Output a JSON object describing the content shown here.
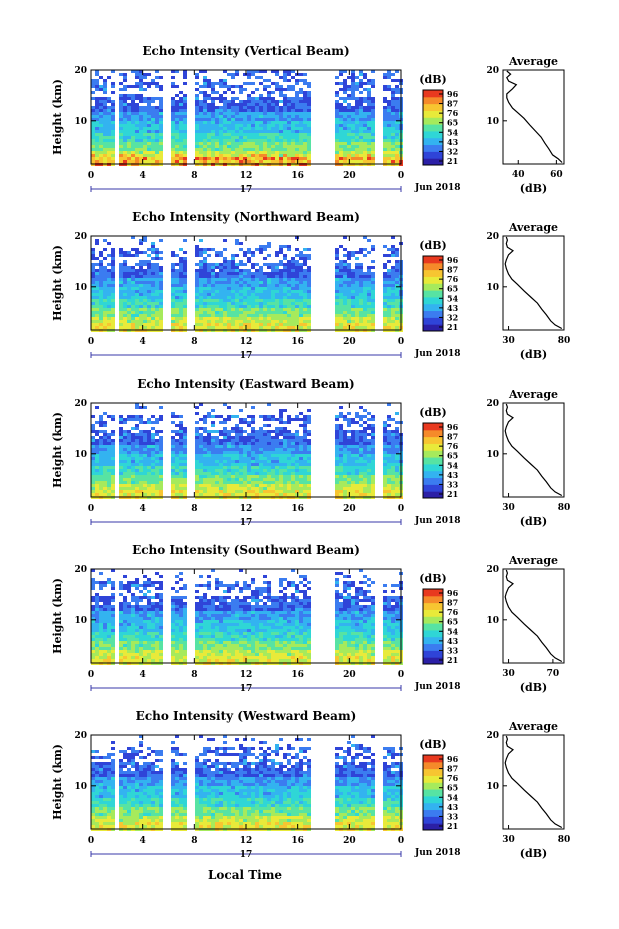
{
  "figure": {
    "common_xlabel": "Local Time",
    "colorbar_unit": "(dB)",
    "date_label": "Jun 2018",
    "day_label": "17",
    "ylabel": "Height (km)",
    "avg_title": "Average",
    "avg_xlabel": "(dB)"
  },
  "colors": {
    "scale": [
      "#2b1fa6",
      "#2f44d8",
      "#3b7cf0",
      "#33b3f0",
      "#2fd6d6",
      "#57e3a3",
      "#a6ea5c",
      "#e8ea3a",
      "#f7c531",
      "#f58a2a",
      "#e8391f"
    ],
    "line": "#000000"
  },
  "chart_data": [
    {
      "type": "heatmap",
      "title": "Echo Intensity (Vertical Beam)",
      "x_ticks": [
        "0",
        "4",
        "8",
        "12",
        "16",
        "20",
        "0"
      ],
      "x_tick_values": [
        0,
        4,
        8,
        12,
        16,
        20,
        24
      ],
      "xlim": [
        0,
        24
      ],
      "y_ticks": [
        "20",
        "10"
      ],
      "y_tick_values": [
        20,
        10
      ],
      "ylim": [
        1.5,
        20
      ],
      "colorbar_ticks": [
        "96",
        "87",
        "76",
        "65",
        "54",
        "43",
        "32",
        "21"
      ],
      "gaps_hours": [
        [
          1.7,
          2.0
        ],
        [
          5.5,
          5.9
        ],
        [
          7.4,
          7.8
        ],
        [
          17.0,
          18.7
        ],
        [
          21.8,
          22.5
        ]
      ],
      "avg_x_ticks": [
        "40",
        "60"
      ],
      "avg_x_tick_values": [
        40,
        60
      ],
      "avg_xlim": [
        32,
        64
      ],
      "avg_y_ticks": [
        "20",
        "10"
      ],
      "avg_y_tick_values": [
        20,
        10
      ],
      "avg_profile": [
        [
          63,
          1.8
        ],
        [
          61,
          2.5
        ],
        [
          58,
          3.3
        ],
        [
          56,
          4.5
        ],
        [
          54,
          5.6
        ],
        [
          52,
          6.8
        ],
        [
          49,
          8.0
        ],
        [
          46,
          9.2
        ],
        [
          43,
          10.5
        ],
        [
          40,
          11.5
        ],
        [
          37,
          12.5
        ],
        [
          35,
          13.6
        ],
        [
          34,
          14.5
        ],
        [
          34,
          15.3
        ],
        [
          37,
          16.3
        ],
        [
          39,
          17.1
        ],
        [
          35,
          17.8
        ],
        [
          34,
          18.5
        ],
        [
          36,
          19.2
        ],
        [
          34,
          19.8
        ]
      ]
    },
    {
      "type": "heatmap",
      "title": "Echo Intensity (Northward Beam)",
      "x_ticks": [
        "0",
        "4",
        "8",
        "12",
        "16",
        "20",
        "0"
      ],
      "x_tick_values": [
        0,
        4,
        8,
        12,
        16,
        20,
        24
      ],
      "xlim": [
        0,
        24
      ],
      "y_ticks": [
        "20",
        "10"
      ],
      "y_tick_values": [
        20,
        10
      ],
      "ylim": [
        1.5,
        20
      ],
      "colorbar_ticks": [
        "96",
        "87",
        "76",
        "65",
        "54",
        "43",
        "32",
        "21"
      ],
      "gaps_hours": [
        [
          1.7,
          2.0
        ],
        [
          5.5,
          5.9
        ],
        [
          7.4,
          7.8
        ],
        [
          17.0,
          18.7
        ],
        [
          21.8,
          22.5
        ]
      ],
      "avg_x_ticks": [
        "30",
        "80"
      ],
      "avg_x_tick_values": [
        30,
        80
      ],
      "avg_xlim": [
        25,
        80
      ],
      "avg_y_ticks": [
        "20",
        "10"
      ],
      "avg_y_tick_values": [
        20,
        10
      ],
      "avg_profile": [
        [
          78,
          1.8
        ],
        [
          72,
          2.5
        ],
        [
          68,
          3.3
        ],
        [
          64,
          4.5
        ],
        [
          60,
          5.6
        ],
        [
          56,
          6.8
        ],
        [
          50,
          8.0
        ],
        [
          44,
          9.2
        ],
        [
          38,
          10.5
        ],
        [
          33,
          11.5
        ],
        [
          30,
          12.5
        ],
        [
          28,
          13.6
        ],
        [
          27,
          14.5
        ],
        [
          28,
          15.3
        ],
        [
          30,
          16.3
        ],
        [
          34,
          17.1
        ],
        [
          29,
          17.8
        ],
        [
          28,
          18.5
        ],
        [
          29,
          19.2
        ],
        [
          28,
          19.8
        ]
      ]
    },
    {
      "type": "heatmap",
      "title": "Echo Intensity (Eastward Beam)",
      "x_ticks": [
        "0",
        "4",
        "8",
        "12",
        "16",
        "20",
        "0"
      ],
      "x_tick_values": [
        0,
        4,
        8,
        12,
        16,
        20,
        24
      ],
      "xlim": [
        0,
        24
      ],
      "y_ticks": [
        "20",
        "10"
      ],
      "y_tick_values": [
        20,
        10
      ],
      "ylim": [
        1.5,
        20
      ],
      "colorbar_ticks": [
        "96",
        "87",
        "76",
        "65",
        "54",
        "43",
        "33",
        "21"
      ],
      "gaps_hours": [
        [
          1.7,
          2.0
        ],
        [
          5.5,
          5.9
        ],
        [
          7.4,
          7.8
        ],
        [
          17.0,
          18.7
        ],
        [
          21.8,
          22.5
        ]
      ],
      "avg_x_ticks": [
        "30",
        "80"
      ],
      "avg_x_tick_values": [
        30,
        80
      ],
      "avg_xlim": [
        25,
        80
      ],
      "avg_y_ticks": [
        "20",
        "10"
      ],
      "avg_y_tick_values": [
        20,
        10
      ],
      "avg_profile": [
        [
          78,
          1.8
        ],
        [
          72,
          2.5
        ],
        [
          68,
          3.3
        ],
        [
          64,
          4.5
        ],
        [
          60,
          5.6
        ],
        [
          56,
          6.8
        ],
        [
          50,
          8.0
        ],
        [
          44,
          9.2
        ],
        [
          38,
          10.5
        ],
        [
          33,
          11.5
        ],
        [
          30,
          12.5
        ],
        [
          28,
          13.6
        ],
        [
          27,
          14.5
        ],
        [
          28,
          15.3
        ],
        [
          30,
          16.3
        ],
        [
          34,
          17.1
        ],
        [
          29,
          17.8
        ],
        [
          28,
          18.5
        ],
        [
          29,
          19.2
        ],
        [
          28,
          19.8
        ]
      ]
    },
    {
      "type": "heatmap",
      "title": "Echo Intensity (Southward Beam)",
      "x_ticks": [
        "0",
        "4",
        "8",
        "12",
        "16",
        "20",
        "0"
      ],
      "x_tick_values": [
        0,
        4,
        8,
        12,
        16,
        20,
        24
      ],
      "xlim": [
        0,
        24
      ],
      "y_ticks": [
        "20",
        "10"
      ],
      "y_tick_values": [
        20,
        10
      ],
      "ylim": [
        1.5,
        20
      ],
      "colorbar_ticks": [
        "96",
        "87",
        "76",
        "65",
        "54",
        "43",
        "33",
        "21"
      ],
      "gaps_hours": [
        [
          1.7,
          2.0
        ],
        [
          5.5,
          5.9
        ],
        [
          7.4,
          7.8
        ],
        [
          17.0,
          18.7
        ],
        [
          21.8,
          22.5
        ]
      ],
      "avg_x_ticks": [
        "30",
        "70"
      ],
      "avg_x_tick_values": [
        30,
        70
      ],
      "avg_xlim": [
        25,
        80
      ],
      "avg_y_ticks": [
        "20",
        "10"
      ],
      "avg_y_tick_values": [
        20,
        10
      ],
      "avg_profile": [
        [
          78,
          1.8
        ],
        [
          72,
          2.5
        ],
        [
          68,
          3.3
        ],
        [
          64,
          4.5
        ],
        [
          60,
          5.6
        ],
        [
          56,
          6.8
        ],
        [
          50,
          8.0
        ],
        [
          44,
          9.2
        ],
        [
          38,
          10.5
        ],
        [
          33,
          11.5
        ],
        [
          30,
          12.5
        ],
        [
          28,
          13.6
        ],
        [
          27,
          14.5
        ],
        [
          28,
          15.3
        ],
        [
          30,
          16.3
        ],
        [
          34,
          17.1
        ],
        [
          29,
          17.8
        ],
        [
          28,
          18.5
        ],
        [
          29,
          19.2
        ],
        [
          28,
          19.8
        ]
      ]
    },
    {
      "type": "heatmap",
      "title": "Echo Intensity (Westward Beam)",
      "x_ticks": [
        "0",
        "4",
        "8",
        "12",
        "16",
        "20",
        "0"
      ],
      "x_tick_values": [
        0,
        4,
        8,
        12,
        16,
        20,
        24
      ],
      "xlim": [
        0,
        24
      ],
      "y_ticks": [
        "20",
        "10"
      ],
      "y_tick_values": [
        20,
        10
      ],
      "ylim": [
        1.5,
        20
      ],
      "colorbar_ticks": [
        "96",
        "87",
        "76",
        "65",
        "54",
        "43",
        "33",
        "21"
      ],
      "gaps_hours": [
        [
          1.7,
          2.0
        ],
        [
          5.5,
          5.9
        ],
        [
          7.4,
          7.8
        ],
        [
          17.0,
          18.7
        ],
        [
          21.8,
          22.5
        ]
      ],
      "avg_x_ticks": [
        "30",
        "80"
      ],
      "avg_x_tick_values": [
        30,
        80
      ],
      "avg_xlim": [
        25,
        80
      ],
      "avg_y_ticks": [
        "20",
        "10"
      ],
      "avg_y_tick_values": [
        20,
        10
      ],
      "avg_profile": [
        [
          78,
          1.8
        ],
        [
          72,
          2.5
        ],
        [
          68,
          3.3
        ],
        [
          64,
          4.5
        ],
        [
          60,
          5.6
        ],
        [
          56,
          6.8
        ],
        [
          50,
          8.0
        ],
        [
          44,
          9.2
        ],
        [
          38,
          10.5
        ],
        [
          33,
          11.5
        ],
        [
          30,
          12.5
        ],
        [
          28,
          13.6
        ],
        [
          27,
          14.5
        ],
        [
          28,
          15.3
        ],
        [
          30,
          16.3
        ],
        [
          34,
          17.1
        ],
        [
          29,
          17.8
        ],
        [
          28,
          18.5
        ],
        [
          29,
          19.2
        ],
        [
          28,
          19.8
        ]
      ]
    }
  ]
}
